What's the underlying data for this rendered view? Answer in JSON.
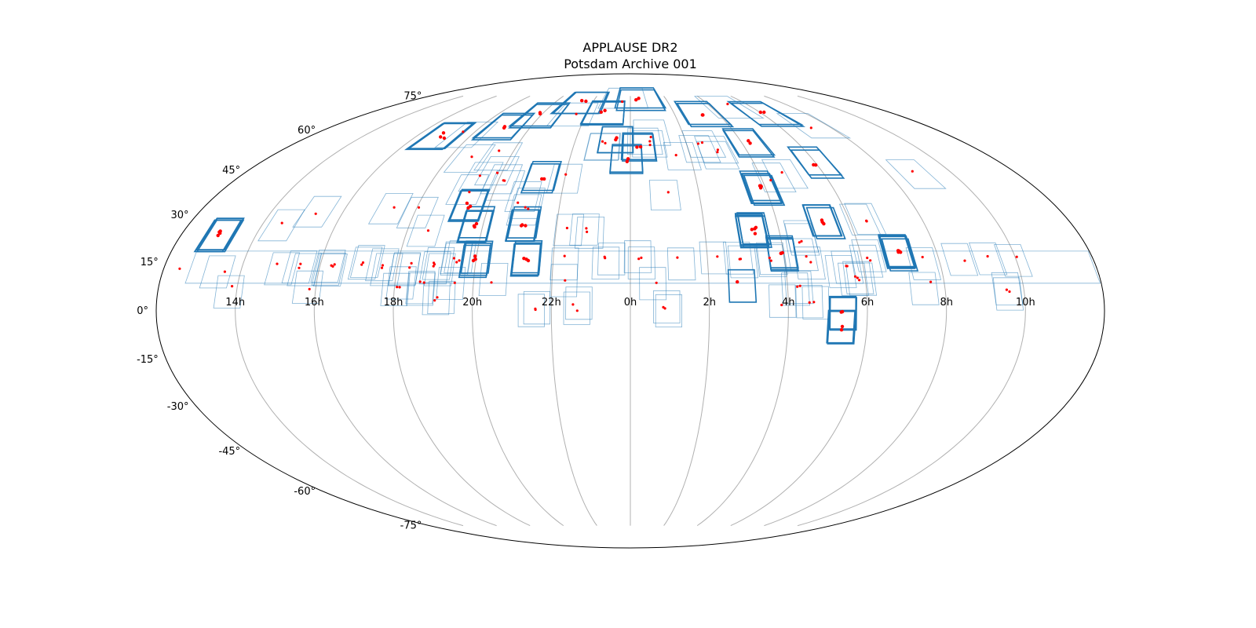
{
  "chart_data": {
    "type": "scatter",
    "projection": "mollweide",
    "title": "APPLAUSE DR2",
    "subtitle": "Potsdam Archive 001",
    "grid": true,
    "ra_tick_labels": [
      "14h",
      "16h",
      "18h",
      "20h",
      "22h",
      "0h",
      "2h",
      "4h",
      "6h",
      "8h",
      "10h"
    ],
    "ra_ticks_hours": [
      14,
      16,
      18,
      20,
      22,
      0,
      2,
      4,
      6,
      8,
      10
    ],
    "dec_tick_labels": [
      "75°",
      "60°",
      "45°",
      "30°",
      "15°",
      "0°",
      "-15°",
      "-30°",
      "-45°",
      "-60°",
      "-75°"
    ],
    "dec_ticks_deg": [
      75,
      60,
      45,
      30,
      15,
      0,
      -15,
      -30,
      -45,
      -60,
      -75
    ],
    "colors": {
      "plate_outline": "#1f77b4",
      "plate_center": "#ff0000",
      "grid": "#b0b0b0",
      "border": "#000000"
    },
    "plates": [
      {
        "ra": 13.0,
        "dec": 24,
        "weight": "bold",
        "count": 4
      },
      {
        "ra": 12.4,
        "dec": 13,
        "weight": "thin",
        "count": 1
      },
      {
        "ra": 13.5,
        "dec": 13,
        "weight": "thin",
        "count": 1
      },
      {
        "ra": 13.8,
        "dec": 7,
        "weight": "thin",
        "count": 1
      },
      {
        "ra": 14.5,
        "dec": 27,
        "weight": "thin",
        "count": 1
      },
      {
        "ra": 14.9,
        "dec": 14,
        "weight": "thin",
        "count": 1
      },
      {
        "ra": 15.3,
        "dec": 31,
        "weight": "thin",
        "count": 1
      },
      {
        "ra": 15.5,
        "dec": 14,
        "weight": "thin",
        "count": 2
      },
      {
        "ra": 15.8,
        "dec": 7,
        "weight": "thin",
        "count": 1
      },
      {
        "ra": 16.3,
        "dec": 14,
        "weight": "thin",
        "count": 3
      },
      {
        "ra": 16.9,
        "dec": 58,
        "weight": "bold",
        "count": 3
      },
      {
        "ra": 17.1,
        "dec": 14,
        "weight": "thin",
        "count": 2
      },
      {
        "ra": 17.3,
        "dec": 33,
        "weight": "thin",
        "count": 1
      },
      {
        "ra": 17.7,
        "dec": 59,
        "weight": "thin",
        "count": 1
      },
      {
        "ra": 17.6,
        "dec": 14,
        "weight": "thin",
        "count": 2
      },
      {
        "ra": 18.0,
        "dec": 32,
        "weight": "thin",
        "count": 1
      },
      {
        "ra": 18.1,
        "dec": 8,
        "weight": "thin",
        "count": 2
      },
      {
        "ra": 18.3,
        "dec": 14,
        "weight": "thin",
        "count": 2
      },
      {
        "ra": 18.6,
        "dec": 25,
        "weight": "thin",
        "count": 1
      },
      {
        "ra": 18.7,
        "dec": 8,
        "weight": "thin",
        "count": 2
      },
      {
        "ra": 18.8,
        "dec": 49,
        "weight": "thin",
        "count": 1
      },
      {
        "ra": 18.9,
        "dec": 62,
        "weight": "bold",
        "count": 2
      },
      {
        "ra": 19.0,
        "dec": 14,
        "weight": "thin",
        "count": 3
      },
      {
        "ra": 19.1,
        "dec": 4,
        "weight": "thin",
        "count": 2
      },
      {
        "ra": 19.2,
        "dec": 38,
        "weight": "thin",
        "count": 1
      },
      {
        "ra": 19.3,
        "dec": 43,
        "weight": "thin",
        "count": 1
      },
      {
        "ra": 19.4,
        "dec": 33,
        "weight": "bold",
        "count": 3
      },
      {
        "ra": 19.5,
        "dec": 16,
        "weight": "thin",
        "count": 3
      },
      {
        "ra": 19.5,
        "dec": 8,
        "weight": "thin",
        "count": 1
      },
      {
        "ra": 19.6,
        "dec": 51,
        "weight": "thin",
        "count": 1
      },
      {
        "ra": 19.8,
        "dec": 27,
        "weight": "bold",
        "count": 3
      },
      {
        "ra": 19.9,
        "dec": 44,
        "weight": "thin",
        "count": 1
      },
      {
        "ra": 20.0,
        "dec": 16,
        "weight": "bold",
        "count": 3
      },
      {
        "ra": 20.0,
        "dec": 66,
        "weight": "bold",
        "count": 2
      },
      {
        "ra": 20.2,
        "dec": 41,
        "weight": "thin",
        "count": 2
      },
      {
        "ra": 20.5,
        "dec": 9,
        "weight": "thin",
        "count": 1
      },
      {
        "ra": 20.8,
        "dec": 35,
        "weight": "thin",
        "count": 1
      },
      {
        "ra": 21.1,
        "dec": 33,
        "weight": "thin",
        "count": 2
      },
      {
        "ra": 21.1,
        "dec": 27,
        "weight": "bold",
        "count": 3
      },
      {
        "ra": 21.3,
        "dec": 16,
        "weight": "bold",
        "count": 3
      },
      {
        "ra": 21.3,
        "dec": 43,
        "weight": "bold",
        "count": 2
      },
      {
        "ra": 21.5,
        "dec": 72,
        "weight": "bold",
        "count": 2
      },
      {
        "ra": 21.5,
        "dec": 68,
        "weight": "thin",
        "count": 1
      },
      {
        "ra": 21.6,
        "dec": 0,
        "weight": "thin",
        "count": 2
      },
      {
        "ra": 22.0,
        "dec": 43,
        "weight": "thin",
        "count": 1
      },
      {
        "ra": 22.3,
        "dec": 25,
        "weight": "thin",
        "count": 1
      },
      {
        "ra": 22.3,
        "dec": 16,
        "weight": "thin",
        "count": 1
      },
      {
        "ra": 22.4,
        "dec": 9,
        "weight": "thin",
        "count": 1
      },
      {
        "ra": 22.6,
        "dec": 1,
        "weight": "thin",
        "count": 2
      },
      {
        "ra": 22.8,
        "dec": 67,
        "weight": "bold",
        "count": 2
      },
      {
        "ra": 22.8,
        "dec": 25,
        "weight": "thin",
        "count": 2
      },
      {
        "ra": 23.1,
        "dec": 55,
        "weight": "thin",
        "count": 2
      },
      {
        "ra": 23.4,
        "dec": 16,
        "weight": "thin",
        "count": 2
      },
      {
        "ra": 23.5,
        "dec": 57,
        "weight": "bold",
        "count": 2
      },
      {
        "ra": 23.6,
        "dec": 73,
        "weight": "thin",
        "count": 1
      },
      {
        "ra": 23.9,
        "dec": 49,
        "weight": "bold",
        "count": 2
      },
      {
        "ra": 0.3,
        "dec": 54,
        "weight": "bold",
        "count": 2
      },
      {
        "ra": 0.3,
        "dec": 16,
        "weight": "thin",
        "count": 2
      },
      {
        "ra": 0.5,
        "dec": 74,
        "weight": "bold",
        "count": 2
      },
      {
        "ra": 0.6,
        "dec": 55,
        "weight": "thin",
        "count": 2
      },
      {
        "ra": 0.6,
        "dec": 9,
        "weight": "thin",
        "count": 1
      },
      {
        "ra": 0.8,
        "dec": 58,
        "weight": "thin",
        "count": 1
      },
      {
        "ra": 0.9,
        "dec": 1,
        "weight": "thin",
        "count": 2
      },
      {
        "ra": 1.1,
        "dec": 37,
        "weight": "thin",
        "count": 1
      },
      {
        "ra": 1.2,
        "dec": 16,
        "weight": "thin",
        "count": 1
      },
      {
        "ra": 1.6,
        "dec": 51,
        "weight": "thin",
        "count": 1
      },
      {
        "ra": 2.2,
        "dec": 16,
        "weight": "thin",
        "count": 1
      },
      {
        "ra": 2.5,
        "dec": 54,
        "weight": "thin",
        "count": 2
      },
      {
        "ra": 2.8,
        "dec": 8,
        "weight": "bold",
        "count": 1
      },
      {
        "ra": 2.9,
        "dec": 16,
        "weight": "thin",
        "count": 2
      },
      {
        "ra": 2.9,
        "dec": 52,
        "weight": "thin",
        "count": 2
      },
      {
        "ra": 3.3,
        "dec": 67,
        "weight": "bold",
        "count": 2
      },
      {
        "ra": 3.3,
        "dec": 25,
        "weight": "bold",
        "count": 6
      },
      {
        "ra": 3.6,
        "dec": 16,
        "weight": "thin",
        "count": 2
      },
      {
        "ra": 3.8,
        "dec": 2,
        "weight": "thin",
        "count": 1
      },
      {
        "ra": 3.9,
        "dec": 39,
        "weight": "bold",
        "count": 4
      },
      {
        "ra": 4.0,
        "dec": 18,
        "weight": "bold",
        "count": 3
      },
      {
        "ra": 4.2,
        "dec": 55,
        "weight": "bold",
        "count": 2
      },
      {
        "ra": 4.3,
        "dec": 8,
        "weight": "thin",
        "count": 2
      },
      {
        "ra": 4.3,
        "dec": 42,
        "weight": "thin",
        "count": 1
      },
      {
        "ra": 4.5,
        "dec": 22,
        "weight": "thin",
        "count": 2
      },
      {
        "ra": 4.6,
        "dec": 16,
        "weight": "thin",
        "count": 2
      },
      {
        "ra": 4.6,
        "dec": 2,
        "weight": "thin",
        "count": 2
      },
      {
        "ra": 4.7,
        "dec": 45,
        "weight": "thin",
        "count": 1
      },
      {
        "ra": 4.8,
        "dec": 70,
        "weight": "thin",
        "count": 1
      },
      {
        "ra": 5.3,
        "dec": 28,
        "weight": "bold",
        "count": 3
      },
      {
        "ra": 5.4,
        "dec": -1,
        "weight": "bold",
        "count": 2
      },
      {
        "ra": 5.4,
        "dec": -5,
        "weight": "bold",
        "count": 2
      },
      {
        "ra": 5.5,
        "dec": 13,
        "weight": "thin",
        "count": 2
      },
      {
        "ra": 5.8,
        "dec": 10,
        "weight": "thin",
        "count": 3
      },
      {
        "ra": 6.0,
        "dec": 48,
        "weight": "bold",
        "count": 2
      },
      {
        "ra": 6.1,
        "dec": 67,
        "weight": "bold",
        "count": 2
      },
      {
        "ra": 6.2,
        "dec": 16,
        "weight": "thin",
        "count": 2
      },
      {
        "ra": 6.4,
        "dec": 28,
        "weight": "thin",
        "count": 2
      },
      {
        "ra": 7.0,
        "dec": 18,
        "weight": "bold",
        "count": 5
      },
      {
        "ra": 7.3,
        "dec": 62,
        "weight": "thin",
        "count": 1
      },
      {
        "ra": 7.5,
        "dec": 16,
        "weight": "thin",
        "count": 1
      },
      {
        "ra": 7.6,
        "dec": 8,
        "weight": "thin",
        "count": 1
      },
      {
        "ra": 8.6,
        "dec": 16,
        "weight": "thin",
        "count": 1
      },
      {
        "ra": 8.9,
        "dec": 45,
        "weight": "thin",
        "count": 1
      },
      {
        "ra": 9.3,
        "dec": 16,
        "weight": "thin",
        "count": 1
      },
      {
        "ra": 9.6,
        "dec": 6,
        "weight": "thin",
        "count": 2
      },
      {
        "ra": 10.0,
        "dec": 16,
        "weight": "thin",
        "count": 1
      }
    ]
  }
}
